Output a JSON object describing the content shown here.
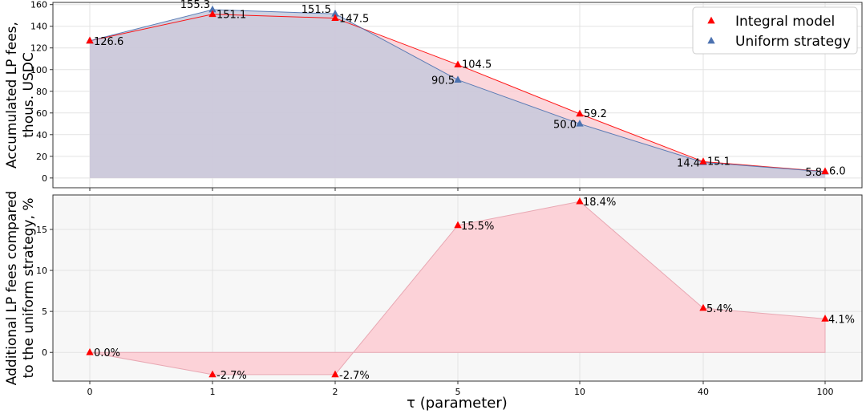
{
  "chart_data": [
    {
      "type": "line",
      "ylabel": "Accumulated LP fees,\nthous. USDC",
      "ylim": [
        -9,
        162
      ],
      "yticks": [
        0,
        20,
        40,
        60,
        80,
        100,
        120,
        140,
        160
      ],
      "grid": true,
      "legend_position": "top-right",
      "categories": [
        "0",
        "1",
        "2",
        "5",
        "10",
        "40",
        "100"
      ],
      "series": [
        {
          "name": "Integral model",
          "marker": "triangle",
          "color": "#ff0000",
          "fill": "#f9c8cf",
          "values": [
            126.6,
            151.1,
            147.5,
            104.5,
            59.2,
            15.1,
            6.0
          ],
          "labels": [
            "126.6",
            "151.1",
            "147.5",
            "104.5",
            "59.2",
            "15.1",
            "6.0"
          ]
        },
        {
          "name": "Uniform strategy",
          "marker": "triangle",
          "color": "#4c72b0",
          "fill": "#c5c9dc",
          "values": [
            126.6,
            155.3,
            151.5,
            90.5,
            50.0,
            14.4,
            5.8
          ],
          "labels": [
            "",
            "155.3",
            "151.5",
            "90.5",
            "50.0",
            "14.4",
            "5.8"
          ]
        }
      ]
    },
    {
      "type": "area",
      "xlabel": "τ (parameter)",
      "ylabel": "Additional LP fees compared\nto the uniform strategy, %",
      "ylim": [
        -3.5,
        19.2
      ],
      "yticks": [
        0,
        5,
        10,
        15
      ],
      "grid": true,
      "categories": [
        "0",
        "1",
        "2",
        "5",
        "10",
        "40",
        "100"
      ],
      "series": [
        {
          "name": "Integral model",
          "marker": "triangle",
          "color": "#ff0000",
          "fill": "#fcd2d8",
          "values": [
            0.0,
            -2.7,
            -2.7,
            15.5,
            18.4,
            5.4,
            4.1
          ],
          "labels": [
            "0.0%",
            "-2.7%",
            "-2.7%",
            "15.5%",
            "18.4%",
            "5.4%",
            "4.1%"
          ]
        }
      ]
    }
  ]
}
